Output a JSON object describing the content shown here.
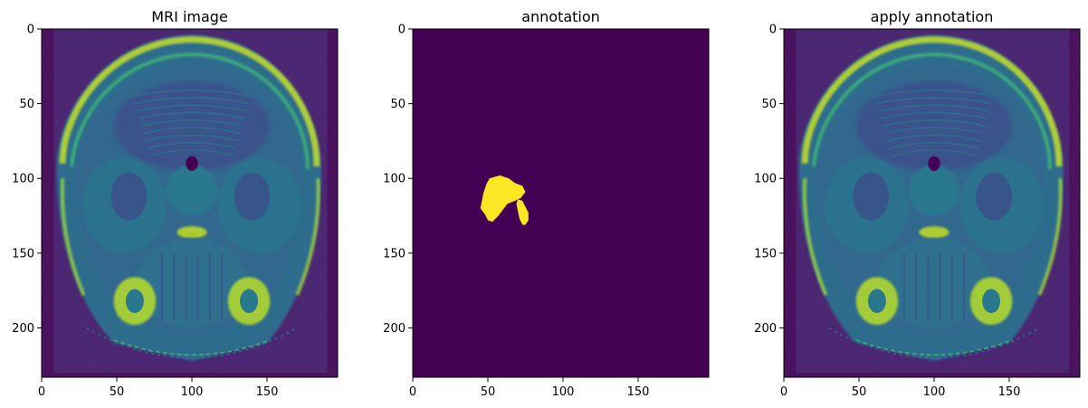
{
  "colors": {
    "background": "#440154",
    "annotation": "#fde725",
    "colormap": "viridis"
  },
  "chart_data": [
    {
      "type": "heatmap",
      "title": "MRI image",
      "content": "mri",
      "xlim": [
        0,
        197
      ],
      "ylim": [
        233,
        0
      ],
      "xticks": [
        0,
        50,
        100,
        150
      ],
      "yticks": [
        0,
        50,
        100,
        150,
        200
      ],
      "xtick_labels": [
        "0",
        "50",
        "100",
        "150"
      ],
      "ytick_labels": [
        "0",
        "50",
        "100",
        "150",
        "200"
      ]
    },
    {
      "type": "heatmap",
      "title": "annotation",
      "content": "mask",
      "xlim": [
        0,
        197
      ],
      "ylim": [
        233,
        0
      ],
      "xticks": [
        0,
        50,
        100,
        150
      ],
      "yticks": [
        0,
        50,
        100,
        150,
        200
      ],
      "xtick_labels": [
        "0",
        "50",
        "100",
        "150"
      ],
      "ytick_labels": [
        "0",
        "50",
        "100",
        "150",
        "200"
      ],
      "mask_region": {
        "main_blob": [
          [
            51,
            100
          ],
          [
            58,
            98
          ],
          [
            64,
            100
          ],
          [
            68,
            103
          ],
          [
            73,
            105
          ],
          [
            75,
            109
          ],
          [
            72,
            113
          ],
          [
            68,
            115
          ],
          [
            63,
            117
          ],
          [
            60,
            121
          ],
          [
            57,
            125
          ],
          [
            53,
            129
          ],
          [
            50,
            128
          ],
          [
            48,
            124
          ],
          [
            45,
            120
          ],
          [
            46,
            115
          ],
          [
            47,
            110
          ],
          [
            49,
            104
          ]
        ],
        "tail": [
          [
            70,
            114
          ],
          [
            73,
            115
          ],
          [
            75,
            119
          ],
          [
            77,
            123
          ],
          [
            77,
            128
          ],
          [
            75,
            131
          ],
          [
            73,
            131
          ],
          [
            71,
            127
          ],
          [
            70,
            122
          ],
          [
            69,
            117
          ]
        ]
      }
    },
    {
      "type": "heatmap",
      "title": "apply annotation",
      "content": "mri",
      "xlim": [
        0,
        197
      ],
      "ylim": [
        233,
        0
      ],
      "xticks": [
        0,
        50,
        100,
        150
      ],
      "yticks": [
        0,
        50,
        100,
        150,
        200
      ],
      "xtick_labels": [
        "0",
        "50",
        "100",
        "150"
      ],
      "ytick_labels": [
        "0",
        "50",
        "100",
        "150",
        "200"
      ]
    }
  ]
}
